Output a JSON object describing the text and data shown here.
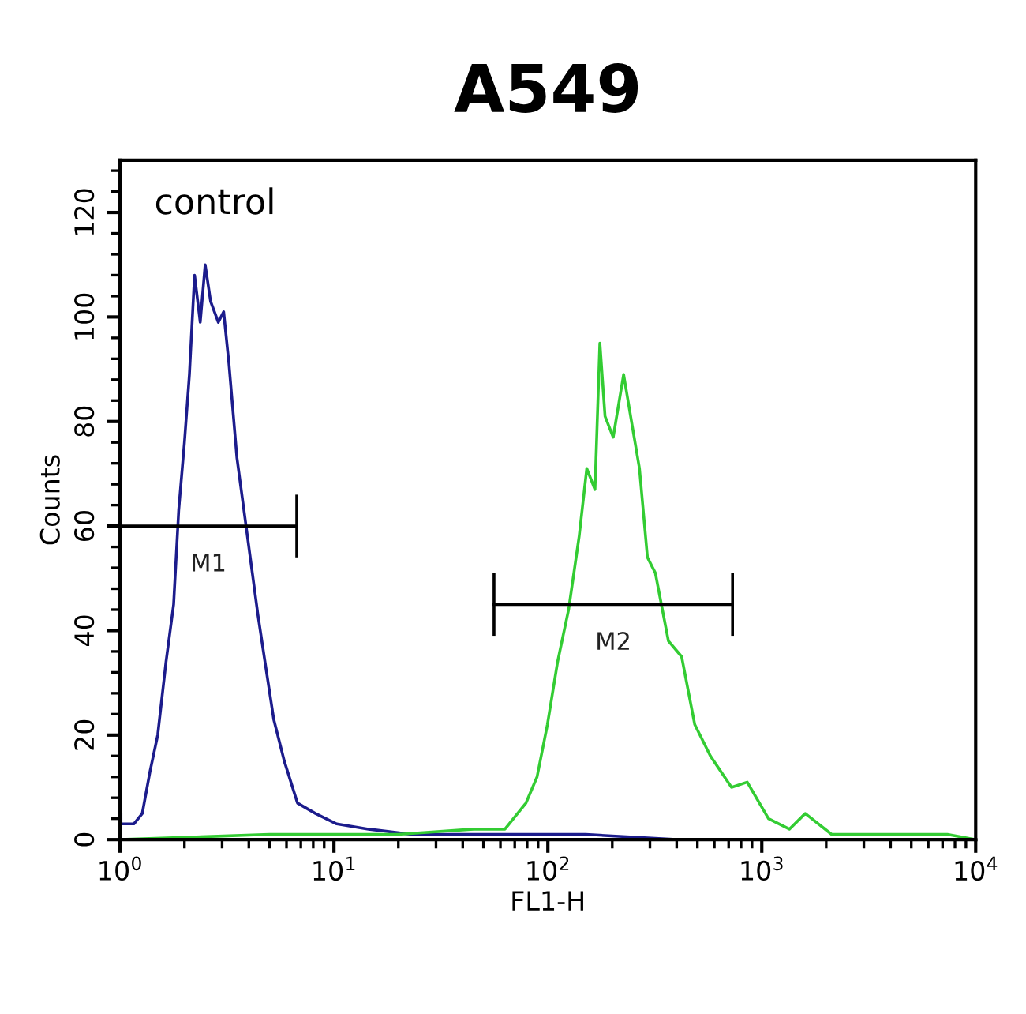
{
  "chart_data": {
    "type": "line",
    "title": "A549",
    "xlabel": "FL1-H",
    "ylabel": "Counts",
    "log": "x",
    "xlim": [
      1,
      10000
    ],
    "ylim": [
      0,
      130
    ],
    "xticks": [
      {
        "value": 1,
        "label": "10$^{0}$"
      },
      {
        "value": 10,
        "label": "10$^{1}$"
      },
      {
        "value": 100,
        "label": "10$^{2}$"
      },
      {
        "value": 1000,
        "label": "10$^{3}$"
      },
      {
        "value": 10000,
        "label": "10$^{4}$"
      }
    ],
    "yticks": [
      0,
      20,
      40,
      60,
      80,
      100,
      120
    ],
    "grid": false,
    "legend": false,
    "annotations": [
      "control"
    ],
    "series": [
      {
        "color": "#1c1c8c",
        "x": [
          1,
          1.01,
          1.16,
          1.27,
          1.38,
          1.5,
          1.64,
          1.78,
          1.88,
          2.0,
          2.11,
          2.23,
          2.37,
          2.5,
          2.65,
          2.88,
          3.05,
          3.23,
          3.52,
          3.94,
          4.41,
          4.8,
          5.23,
          5.86,
          6.75,
          8.2,
          10.3,
          14.5,
          23,
          45,
          75,
          150,
          400,
          10000
        ],
        "values": [
          67,
          3,
          3,
          5,
          13,
          20,
          34,
          45,
          63,
          76,
          89,
          108,
          99,
          110,
          103,
          99,
          101,
          91,
          73,
          58,
          43,
          33,
          23,
          15,
          7,
          5,
          3,
          2,
          1,
          1,
          1,
          1,
          0,
          0
        ]
      },
      {
        "color": "#33cc33",
        "x": [
          1,
          5,
          10,
          20,
          45,
          63,
          79,
          89,
          99.5,
          111,
          125,
          140,
          152,
          166,
          175,
          185,
          202,
          226,
          246,
          268,
          292,
          318,
          366,
          422,
          486,
          575,
          722,
          855,
          1075,
          1346,
          1597,
          2120,
          4180,
          7370,
          10000
        ],
        "values": [
          0,
          1,
          1,
          1,
          2,
          2,
          7,
          12,
          22,
          34,
          44,
          58,
          71,
          67,
          95,
          81,
          77,
          89,
          80,
          71,
          54,
          51,
          38,
          35,
          22,
          16,
          10,
          11,
          4,
          2,
          5,
          1,
          1,
          1,
          0
        ]
      },
      {
        "name": "M1",
        "color": "#000000",
        "x": [
          1,
          6.7
        ],
        "values": [
          60,
          60
        ],
        "errors": [
          null,
          6
        ]
      },
      {
        "name": "M2",
        "color": "#000000",
        "x": [
          56,
          730
        ],
        "values": [
          45,
          45
        ],
        "errors": [
          6,
          6
        ]
      }
    ]
  }
}
